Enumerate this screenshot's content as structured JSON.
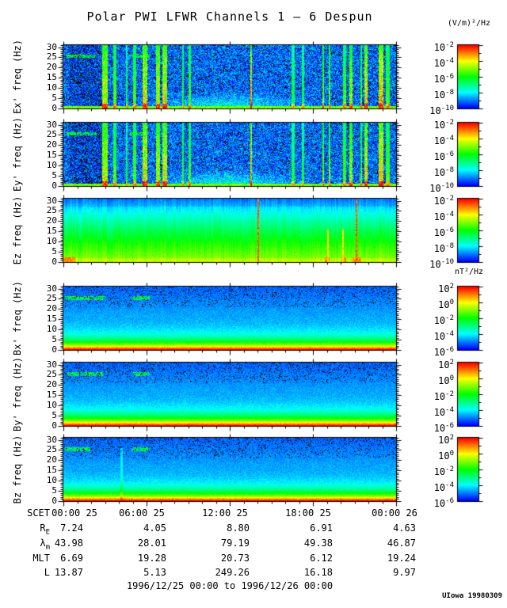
{
  "title": "Polar PWI LFWR Channels 1 — 6 Despun",
  "units_e": "(V/m)²/Hz",
  "units_b": "nT²/Hz",
  "footer": "1996/12/25 00:00 to 1996/12/26 00:00",
  "credit": "UIowa 19980309",
  "chart_data": {
    "type": "heatmap",
    "title": "Polar PWI LFWR Channels 1 — 6 Despun",
    "subtitle": "Six stacked frequency-time spectrogram panels (3 electric, 3 magnetic field channels)",
    "x_axis": {
      "label": "SCET",
      "range_hours": [
        0,
        24
      ],
      "major_tick_hours": 6,
      "minor_tick_hours": 1,
      "tick_labels": [
        "00:00 25",
        "06:00 25",
        "12:00 25",
        "18:00 25",
        "00:00 26"
      ]
    },
    "y_axis": {
      "range": [
        0,
        31
      ],
      "tick_labels": [
        0,
        5,
        10,
        15,
        20,
        25,
        30
      ]
    },
    "colorbar_e": {
      "units": "(V/m)²/Hz",
      "scale": "log",
      "tick_exponents": [
        "-2",
        "-4",
        "-6",
        "-8",
        "-10"
      ]
    },
    "colorbar_b": {
      "units": "nT²/Hz",
      "scale": "log",
      "tick_exponents": [
        "2",
        "0",
        "-2",
        "-4",
        "-6"
      ]
    },
    "panels": [
      {
        "id": "ex",
        "ylabel": "Ex' freq (Hz)",
        "colorbar": "e",
        "style": "e_burst",
        "seed": 11,
        "bursts": [
          [
            0.125,
            0.015,
            0.75
          ],
          [
            0.155,
            0.008,
            0.6
          ],
          [
            0.19,
            0.006,
            0.5
          ],
          [
            0.215,
            0.01,
            0.6
          ],
          [
            0.245,
            0.016,
            0.8
          ],
          [
            0.285,
            0.012,
            0.75
          ],
          [
            0.305,
            0.013,
            0.8
          ],
          [
            0.36,
            0.006,
            0.55
          ],
          [
            0.38,
            0.008,
            0.6
          ],
          [
            0.565,
            0.005,
            0.9
          ],
          [
            0.69,
            0.01,
            0.5
          ],
          [
            0.72,
            0.008,
            0.5
          ],
          [
            0.78,
            0.005,
            0.65
          ],
          [
            0.8,
            0.006,
            0.65
          ],
          [
            0.845,
            0.008,
            0.6
          ],
          [
            0.865,
            0.01,
            0.7
          ],
          [
            0.895,
            0.006,
            0.6
          ],
          [
            0.91,
            0.01,
            0.8
          ],
          [
            0.955,
            0.013,
            0.85
          ],
          [
            0.975,
            0.01,
            0.6
          ]
        ],
        "line_25hz": [
          [
            0.01,
            0.095
          ],
          [
            0.2,
            0.26
          ]
        ]
      },
      {
        "id": "ey",
        "ylabel": "Ey' freq (Hz)",
        "colorbar": "e",
        "style": "e_burst",
        "seed": 22,
        "bursts": [
          [
            0.125,
            0.015,
            0.75
          ],
          [
            0.155,
            0.008,
            0.6
          ],
          [
            0.19,
            0.006,
            0.5
          ],
          [
            0.215,
            0.01,
            0.6
          ],
          [
            0.245,
            0.016,
            0.8
          ],
          [
            0.285,
            0.012,
            0.75
          ],
          [
            0.305,
            0.013,
            0.8
          ],
          [
            0.36,
            0.006,
            0.55
          ],
          [
            0.38,
            0.008,
            0.6
          ],
          [
            0.565,
            0.005,
            0.9
          ],
          [
            0.69,
            0.01,
            0.5
          ],
          [
            0.72,
            0.008,
            0.5
          ],
          [
            0.78,
            0.005,
            0.65
          ],
          [
            0.8,
            0.006,
            0.65
          ],
          [
            0.845,
            0.008,
            0.6
          ],
          [
            0.865,
            0.01,
            0.7
          ],
          [
            0.895,
            0.006,
            0.6
          ],
          [
            0.91,
            0.01,
            0.8
          ],
          [
            0.955,
            0.013,
            0.85
          ],
          [
            0.975,
            0.01,
            0.6
          ]
        ],
        "line_25hz": [
          [
            0.01,
            0.1
          ],
          [
            0.2,
            0.25
          ]
        ]
      },
      {
        "id": "ez",
        "ylabel": "Ez freq (Hz)",
        "colorbar": "e",
        "style": "e_smooth",
        "seed": 33,
        "red_lines": [
          0.585,
          0.881
        ],
        "orange_partials": [
          0.795,
          0.84
        ],
        "orange_bottom": [
          [
            0.0,
            0.035
          ],
          [
            0.785,
            0.8
          ],
          [
            0.835,
            0.85
          ],
          [
            0.87,
            0.895
          ]
        ]
      },
      {
        "id": "bx",
        "ylabel": "Bx' freq (Hz)",
        "colorbar": "b",
        "style": "b_gradient",
        "seed": 44,
        "line_25hz": [
          [
            0.005,
            0.125
          ],
          [
            0.205,
            0.26
          ]
        ]
      },
      {
        "id": "by",
        "ylabel": "By' freq (Hz)",
        "colorbar": "b",
        "style": "b_gradient",
        "seed": 55,
        "line_25hz": [
          [
            0.01,
            0.12
          ],
          [
            0.21,
            0.26
          ]
        ]
      },
      {
        "id": "bz",
        "ylabel": "Bz freq (Hz)",
        "colorbar": "b",
        "style": "b_gradient",
        "seed": 66,
        "line_25hz": [
          [
            0.005,
            0.08
          ],
          [
            0.205,
            0.255
          ]
        ],
        "faint_line": 0.175
      }
    ],
    "ephemeris": {
      "rows": [
        {
          "label": "SCET",
          "type": "time",
          "values": [
            "00:00 25",
            "06:00 25",
            "12:00 25",
            "18:00 25",
            "00:00 26"
          ]
        },
        {
          "label": "R",
          "sub": "E",
          "values": [
            "7.24",
            "4.05",
            "8.80",
            "6.91",
            "4.63"
          ]
        },
        {
          "label": "λ",
          "sub": "m",
          "values": [
            "43.98",
            "28.01",
            "79.19",
            "49.38",
            "46.87"
          ]
        },
        {
          "label": "MLT",
          "values": [
            "6.69",
            "19.28",
            "20.73",
            "6.12",
            "19.24"
          ]
        },
        {
          "label": "L",
          "values": [
            "13.87",
            "5.13",
            "249.26",
            "16.18",
            "9.97"
          ]
        }
      ]
    }
  }
}
